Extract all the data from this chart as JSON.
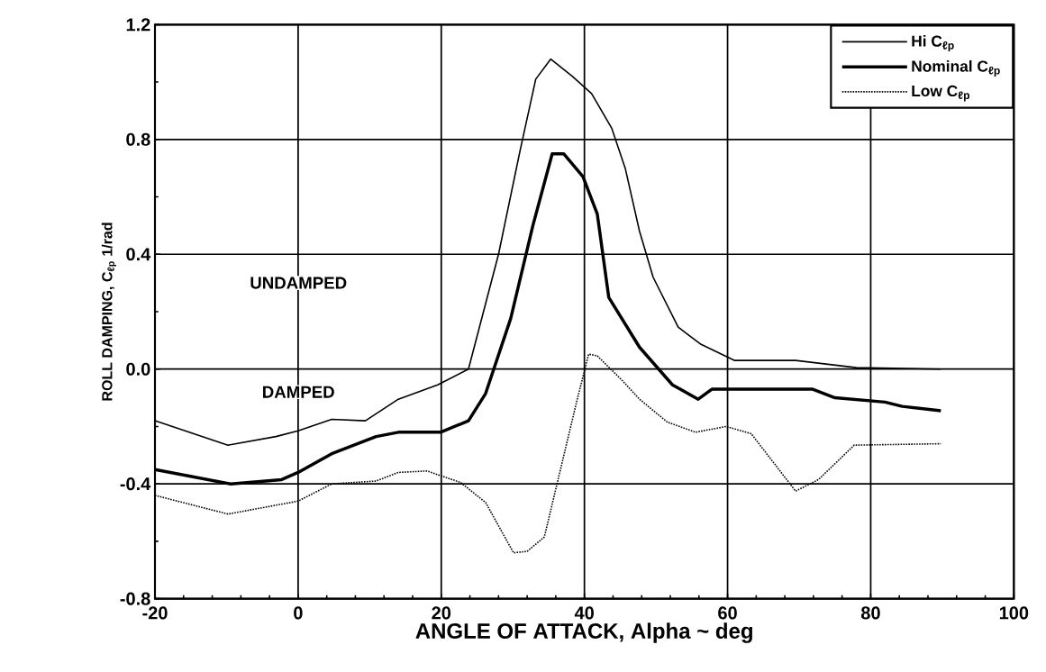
{
  "chart_data": {
    "type": "line",
    "xlabel": "ANGLE OF ATTACK, Alpha ~ deg",
    "ylabel": "ROLL DAMPING, C$_{ℓp}$   1/rad",
    "xlim": [
      -20,
      100
    ],
    "ylim": [
      -0.8,
      1.2
    ],
    "xticks": [
      -20,
      0,
      20,
      40,
      60,
      80,
      100
    ],
    "yticks": [
      -0.8,
      -0.4,
      {
        "value": 0,
        "label": "0.0"
      },
      0.4,
      0.8,
      1.2
    ],
    "grid": true,
    "legend": "top right",
    "annotations": [
      "UNDAMPED",
      "DAMPED"
    ],
    "series": [
      {
        "name": "Hi C$_{ℓp}$",
        "color": "#000000",
        "line_style": "solid",
        "x": [
          -20,
          -9.8,
          -3.1,
          0,
          4.7,
          9.4,
          14,
          19.5,
          23.8,
          28,
          31,
          33.2,
          35.3,
          38.3,
          41,
          43.8,
          45.7,
          47.7,
          49.6,
          53.1,
          56.3,
          61,
          69.5,
          78,
          89.8
        ],
        "values": [
          -0.18,
          -0.265,
          -0.235,
          -0.215,
          -0.175,
          -0.18,
          -0.105,
          -0.055,
          0.0,
          0.4,
          0.76,
          1.01,
          1.08,
          1.02,
          0.96,
          0.84,
          0.7,
          0.48,
          0.32,
          0.146,
          0.086,
          0.03,
          0.03,
          0.005,
          0.0
        ]
      },
      {
        "name": "Nominal C$_{ℓp}$",
        "color": "#000000",
        "line_style": "solid",
        "x": [
          -20,
          -9.4,
          -2.3,
          0,
          4.7,
          10.9,
          14,
          19.9,
          23.8,
          26.2,
          29.7,
          32.8,
          35.5,
          37.1,
          39.8,
          41.8,
          43.4,
          47.7,
          52.3,
          55.9,
          57.8,
          71.9,
          75,
          82,
          84.4,
          89.8
        ],
        "values": [
          -0.35,
          -0.4,
          -0.385,
          -0.36,
          -0.295,
          -0.235,
          -0.22,
          -0.22,
          -0.18,
          -0.085,
          0.176,
          0.5,
          0.75,
          0.75,
          0.67,
          0.54,
          0.25,
          0.076,
          -0.055,
          -0.105,
          -0.07,
          -0.07,
          -0.1,
          -0.115,
          -0.13,
          -0.145
        ]
      },
      {
        "name": "Low C$_{ℓp}$",
        "color": "#000000",
        "line_style": "dotted",
        "x": [
          -20,
          -9.8,
          0,
          4.7,
          10.9,
          14,
          18,
          22.7,
          26.2,
          30.1,
          32,
          34.4,
          36.7,
          39,
          40.6,
          41.8,
          45.3,
          47.7,
          51.6,
          55.5,
          59.8,
          63.3,
          66.4,
          69.5,
          72.7,
          77.7,
          89.8
        ],
        "values": [
          -0.44,
          -0.505,
          -0.46,
          -0.4,
          -0.39,
          -0.36,
          -0.355,
          -0.395,
          -0.465,
          -0.64,
          -0.635,
          -0.585,
          -0.345,
          -0.105,
          0.052,
          0.046,
          -0.04,
          -0.105,
          -0.185,
          -0.22,
          -0.2,
          -0.225,
          -0.325,
          -0.425,
          -0.385,
          -0.265,
          -0.26
        ]
      }
    ]
  }
}
